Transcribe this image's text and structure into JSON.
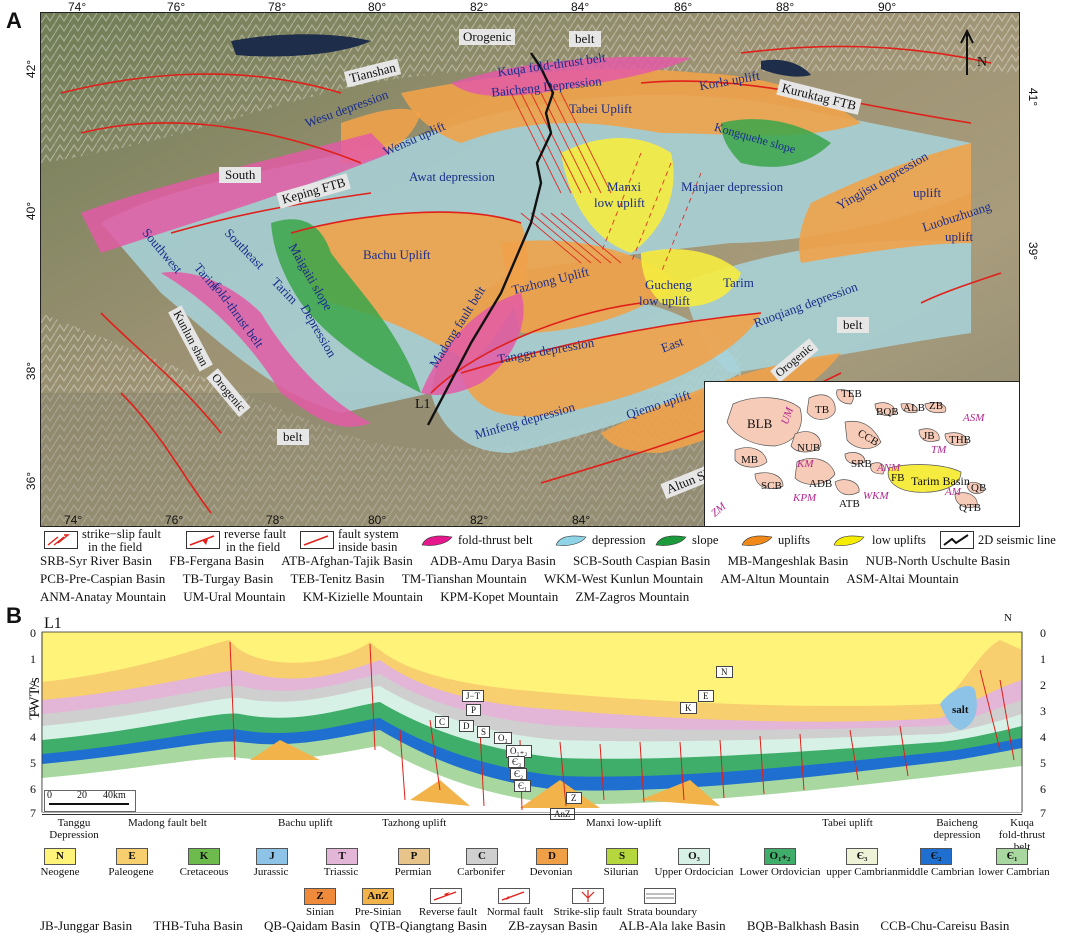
{
  "panelA": {
    "label": "A",
    "lon_ticks": [
      "74°",
      "76°",
      "78°",
      "80°",
      "82°",
      "84°",
      "86°",
      "88°",
      "90°"
    ],
    "lat_ticks_left": [
      "42°",
      "40°",
      "38°",
      "36°"
    ],
    "lat_ticks_right": [
      "41°",
      "39°"
    ],
    "north": "N",
    "map_labels": {
      "orogenic_top": "Orogenic",
      "belt_top": "belt",
      "kuqa": "Kuqa fold-thrust belt",
      "tianshan": "Tianshan",
      "baicheng": "Baicheng Depression",
      "korla": "Korla uplift",
      "kuruktag": "Kuruktag FTB",
      "wesu_dep": "Wesu depression",
      "wensu_uplift": "Wensu uplift",
      "tabei": "Tabei Uplift",
      "kongquehe": "Kongquehe slope",
      "south": "South",
      "keping": "Keping FTB",
      "awat": "Awat depression",
      "manxi": "Manxi",
      "manxi2": "low uplift",
      "manjaer": "Manjaer depression",
      "yingjisu": "Yingjisu depression",
      "uplift_e": "uplift",
      "luobuzhuang": "Luobuzhuang",
      "luobuzhuang2": "uplift",
      "southwest": "Southwest",
      "tarim_sw": "Tarim",
      "southeast": "Southeast",
      "tarim_se": "Tarim",
      "maigaiti": "Maigaiti slope",
      "bachu": "Bachu Uplift",
      "tazhong": "Tazhong Uplift",
      "gucheng": "Gucheng",
      "gucheng2": "low uplift",
      "tarim_e": "Tarim",
      "ruoqiang": "Ruoqiang depression",
      "foldthrust": "fold-thrust belt",
      "depression": "Depression",
      "madong": "Madong fault belt",
      "tanggu": "Tanggu depression",
      "east": "East",
      "kunlun": "Kunlun shan",
      "orogenic_sw": "Orogenic",
      "belt_sw": "belt",
      "l1": "L1",
      "minfeng": "Minfeng depression",
      "qiemo": "Qiemo uplift",
      "orogenic_se": "Orogenic",
      "belt_se": "belt",
      "altun": "Altun Shan"
    },
    "inset_labels": {
      "blb": "BLB",
      "tb": "TB",
      "teb": "TEB",
      "bqb": "BQB",
      "alb": "ALB",
      "zb": "ZB",
      "asm": "ASM",
      "um": "UM",
      "nub": "NUB",
      "ccb": "CCB",
      "jb": "JB",
      "thb": "THB",
      "tm": "TM",
      "mb": "MB",
      "km": "KM",
      "srb": "SRB",
      "anm": "ANM",
      "fb": "FB",
      "tarim": "Tarim Basin",
      "scb": "SCB",
      "adb": "ADB",
      "kpm": "KPM",
      "wkm": "WKM",
      "am": "AM",
      "qb": "QB",
      "atb": "ATB",
      "qtb": "QTB",
      "zm": "ZM"
    }
  },
  "legendA": [
    {
      "label": "strike−slip fault",
      "label2": "in the field"
    },
    {
      "label": "reverse fault",
      "label2": "in the field"
    },
    {
      "label": "fault system",
      "label2": "inside basin"
    },
    {
      "label": "fold-thrust belt"
    },
    {
      "label": "depression"
    },
    {
      "label": "slope"
    },
    {
      "label": "uplifts"
    },
    {
      "label": "low uplifts"
    },
    {
      "label": "2D seismic line"
    }
  ],
  "abbreviations": [
    "SRB-Syr River Basin",
    "FB-Fergana Basin",
    "ATB-Afghan-Tajik Basin",
    "ADB-Amu Darya Basin",
    "SCB-South Caspian Basin",
    "MB-Mangeshlak Basin",
    "NUB-North Uschulte Basin",
    "PCB-Pre-Caspian Basin",
    "TB-Turgay Basin",
    "TEB-Tenitz Basin",
    "TM-Tianshan Mountain",
    "WKM-West Kunlun Mountain",
    "AM-Altun Mountain",
    "ASM-Altai Mountain",
    "ANM-Anatay Mountain",
    "UM-Ural Mountain",
    "KM-Kizielle Mountain",
    "KPM-Kopet Mountain",
    "ZM-Zagros Mountain"
  ],
  "panelB": {
    "label": "B",
    "line": "L1",
    "north": "N",
    "axis_title": "TWT/s",
    "y_ticks": [
      "0",
      "1",
      "2",
      "3",
      "4",
      "5",
      "6",
      "7"
    ],
    "scale": [
      "0",
      "20",
      "40km"
    ],
    "section_tags": [
      "N",
      "E",
      "K",
      "J−T",
      "P",
      "C",
      "D",
      "S",
      "O₃",
      "O₁₊₂",
      "Є₃",
      "Є₂",
      "Є₁",
      "Z",
      "AnZ"
    ],
    "salt": "salt",
    "zones": [
      {
        "label": "Tanggu",
        "label2": "Depression"
      },
      {
        "label": "Madong fault belt"
      },
      {
        "label": "Bachu uplift"
      },
      {
        "label": "Tazhong uplift"
      },
      {
        "label": "Manxi low-uplift"
      },
      {
        "label": "Tabei uplift"
      },
      {
        "label": "Baicheng",
        "label2": "depression"
      },
      {
        "label": "Kuqa",
        "label2": "fold-thrust",
        "label3": "belt"
      }
    ]
  },
  "strata_legend": [
    {
      "code": "N",
      "name": "Neogene",
      "color": "#fff37a"
    },
    {
      "code": "E",
      "name": "Paleogene",
      "color": "#f7cf6e"
    },
    {
      "code": "K",
      "name": "Cretaceous",
      "color": "#6dbb4c"
    },
    {
      "code": "J",
      "name": "Jurassic",
      "color": "#8ec3e8"
    },
    {
      "code": "T",
      "name": "Triassic",
      "color": "#e3b5d6"
    },
    {
      "code": "P",
      "name": "Permian",
      "color": "#e6c48a"
    },
    {
      "code": "C",
      "name": "Carbonifer",
      "color": "#cfcfcf"
    },
    {
      "code": "D",
      "name": "Devonian",
      "color": "#ef9f45"
    },
    {
      "code": "S",
      "name": "Silurian",
      "color": "#b6d63e"
    },
    {
      "code": "O₃",
      "name": "Upper Ordocician",
      "color": "#d8f1e6"
    },
    {
      "code": "O₁₊₂",
      "name": "Lower Ordovician",
      "color": "#3fae6b"
    },
    {
      "code": "Є₃",
      "name": "upper Cambrian",
      "color": "#eef3d8"
    },
    {
      "code": "Є₂",
      "name": "middle Cambrian",
      "color": "#1f6fd0"
    },
    {
      "code": "Є₁",
      "name": "lower Cambrian",
      "color": "#a8d8a0"
    },
    {
      "code": "Z",
      "name": "Sinian",
      "color": "#ee8a3a"
    },
    {
      "code": "AnZ",
      "name": "Pre-Sinian",
      "color": "#f2b34a"
    },
    {
      "name": "Reverse fault"
    },
    {
      "name": "Normal fault"
    },
    {
      "name": "Strike-slip fault"
    },
    {
      "name": "Strata boundary"
    }
  ],
  "bottom_abbreviations": [
    "JB-Junggar Basin",
    "THB-Tuha Basin",
    "QB-Qaidam Basin",
    "QTB-Qiangtang Basin",
    "ZB-zaysan Basin",
    "ALB-Ala lake Basin",
    "BQB-Balkhash Basin",
    "CCB-Chu-Careisu Basin"
  ]
}
